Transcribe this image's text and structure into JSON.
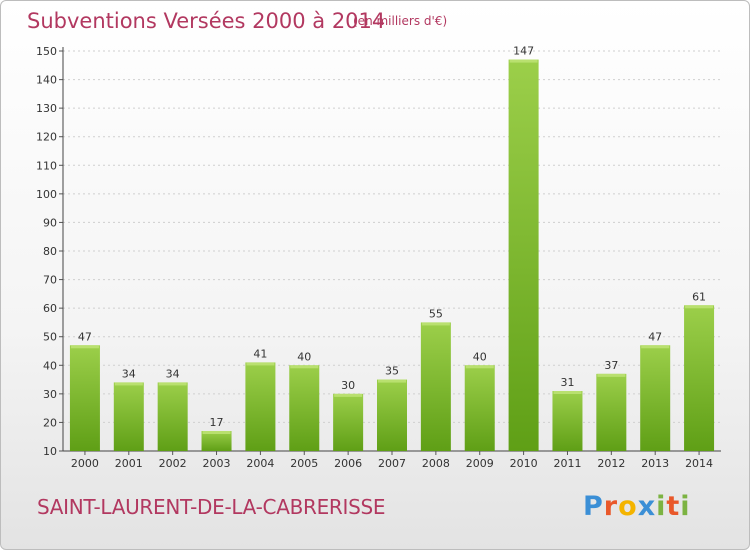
{
  "title": "Subventions Versées 2000 à 2014",
  "subtitle": "(en milliers d'€)",
  "commune": "SAINT-LAURENT-DE-LA-CABRERISSE",
  "logo": {
    "letters": [
      "P",
      "r",
      "o",
      "x",
      "i",
      "t",
      "i"
    ],
    "colors": [
      "#3b8fd6",
      "#e9582a",
      "#f4b400",
      "#3b8fd6",
      "#7cb342",
      "#e9582a",
      "#7cb342"
    ]
  },
  "colors": {
    "title": "#b23860",
    "bar_light": "#9ccf4a",
    "bar_dark": "#5f9f16"
  },
  "chart_data": {
    "type": "bar",
    "categories": [
      "2000",
      "2001",
      "2002",
      "2003",
      "2004",
      "2005",
      "2006",
      "2007",
      "2008",
      "2009",
      "2010",
      "2011",
      "2012",
      "2013",
      "2014"
    ],
    "values": [
      47,
      34,
      34,
      17,
      41,
      40,
      30,
      35,
      55,
      40,
      147,
      31,
      37,
      47,
      61
    ],
    "ylim": [
      10,
      150
    ],
    "yticks": [
      10,
      20,
      30,
      40,
      50,
      60,
      70,
      80,
      90,
      100,
      110,
      120,
      130,
      140,
      150
    ],
    "grid": true,
    "xlabel": "",
    "ylabel": ""
  }
}
